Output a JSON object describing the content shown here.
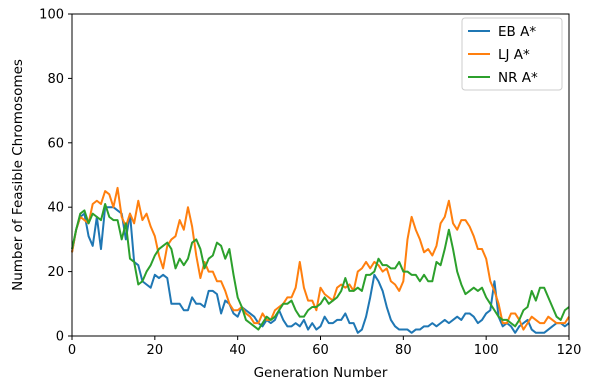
{
  "chart_data": {
    "type": "line",
    "title": "",
    "xlabel": "Generation Number",
    "ylabel": "Number of Feasible Chromosomes",
    "xlim": [
      0,
      120
    ],
    "ylim": [
      0,
      100
    ],
    "x_ticks": [
      "0",
      "20",
      "40",
      "60",
      "80",
      "100",
      "120"
    ],
    "y_ticks": [
      "0",
      "20",
      "40",
      "60",
      "80",
      "100"
    ],
    "grid": false,
    "legend_position": "top-right",
    "series": [
      {
        "name": "EB A*",
        "color": "#1f77b4",
        "x": [
          0,
          1,
          2,
          3,
          4,
          5,
          6,
          7,
          8,
          9,
          10,
          11,
          12,
          13,
          14,
          15,
          16,
          17,
          18,
          19,
          20,
          21,
          22,
          23,
          24,
          25,
          26,
          27,
          28,
          29,
          30,
          31,
          32,
          33,
          34,
          35,
          36,
          37,
          38,
          39,
          40,
          41,
          42,
          43,
          44,
          45,
          46,
          47,
          48,
          49,
          50,
          51,
          52,
          53,
          54,
          55,
          56,
          57,
          58,
          59,
          60,
          61,
          62,
          63,
          64,
          65,
          66,
          67,
          68,
          69,
          70,
          71,
          72,
          73,
          74,
          75,
          76,
          77,
          78,
          79,
          80,
          81,
          82,
          83,
          84,
          85,
          86,
          87,
          88,
          89,
          90,
          91,
          92,
          93,
          94,
          95,
          96,
          97,
          98,
          99,
          100,
          101,
          102,
          103,
          104,
          105,
          106,
          107,
          108,
          109,
          110,
          111,
          112,
          113,
          114,
          115,
          116,
          117,
          118,
          119,
          120
        ],
        "values": [
          26,
          33,
          37,
          38,
          31,
          28,
          37,
          27,
          40,
          40,
          40,
          39,
          38,
          30,
          38,
          23,
          22,
          17,
          16,
          15,
          19,
          18,
          19,
          18,
          10,
          10,
          10,
          8,
          8,
          12,
          10,
          10,
          9,
          14,
          14,
          13,
          7,
          11,
          10,
          7,
          6,
          9,
          8,
          7,
          6,
          4,
          3,
          5,
          4,
          5,
          8,
          5,
          3,
          3,
          4,
          3,
          5,
          2,
          4,
          2,
          3,
          6,
          4,
          4,
          5,
          5,
          7,
          4,
          4,
          1,
          2,
          6,
          12,
          19,
          17,
          14,
          9,
          5,
          3,
          2,
          2,
          2,
          1,
          2,
          2,
          3,
          3,
          4,
          3,
          4,
          5,
          4,
          5,
          6,
          5,
          7,
          7,
          6,
          4,
          5,
          7,
          8,
          17,
          6,
          3,
          4,
          3,
          1,
          3,
          4,
          5,
          2,
          1,
          1,
          1,
          2,
          3,
          4,
          4,
          3,
          4
        ]
      },
      {
        "name": "LJ A*",
        "color": "#ff7f0e",
        "x": [
          0,
          1,
          2,
          3,
          4,
          5,
          6,
          7,
          8,
          9,
          10,
          11,
          12,
          13,
          14,
          15,
          16,
          17,
          18,
          19,
          20,
          21,
          22,
          23,
          24,
          25,
          26,
          27,
          28,
          29,
          30,
          31,
          32,
          33,
          34,
          35,
          36,
          37,
          38,
          39,
          40,
          41,
          42,
          43,
          44,
          45,
          46,
          47,
          48,
          49,
          50,
          51,
          52,
          53,
          54,
          55,
          56,
          57,
          58,
          59,
          60,
          61,
          62,
          63,
          64,
          65,
          66,
          67,
          68,
          69,
          70,
          71,
          72,
          73,
          74,
          75,
          76,
          77,
          78,
          79,
          80,
          81,
          82,
          83,
          84,
          85,
          86,
          87,
          88,
          89,
          90,
          91,
          92,
          93,
          94,
          95,
          96,
          97,
          98,
          99,
          100,
          101,
          102,
          103,
          104,
          105,
          106,
          107,
          108,
          109,
          110,
          111,
          112,
          113,
          114,
          115,
          116,
          117,
          118,
          119,
          120
        ],
        "values": [
          26,
          33,
          37,
          36,
          35,
          41,
          42,
          41,
          45,
          44,
          40,
          46,
          37,
          34,
          38,
          35,
          42,
          36,
          38,
          34,
          31,
          25,
          21,
          28,
          30,
          31,
          36,
          33,
          40,
          34,
          25,
          18,
          23,
          20,
          20,
          17,
          17,
          14,
          10,
          8,
          8,
          9,
          7,
          6,
          4,
          4,
          7,
          5,
          5,
          8,
          9,
          10,
          12,
          12,
          15,
          23,
          15,
          11,
          11,
          8,
          15,
          13,
          12,
          11,
          15,
          16,
          15,
          16,
          14,
          20,
          21,
          23,
          21,
          23,
          22,
          20,
          21,
          17,
          16,
          14,
          17,
          30,
          37,
          33,
          30,
          26,
          27,
          25,
          28,
          35,
          37,
          42,
          35,
          33,
          36,
          36,
          34,
          31,
          27,
          27,
          24,
          17,
          14,
          10,
          4,
          4,
          7,
          7,
          5,
          2,
          4,
          6,
          5,
          4,
          4,
          6,
          5,
          4,
          4,
          4,
          6
        ]
      },
      {
        "name": "NR A*",
        "color": "#2ca02c",
        "x": [
          0,
          1,
          2,
          3,
          4,
          5,
          6,
          7,
          8,
          9,
          10,
          11,
          12,
          13,
          14,
          15,
          16,
          17,
          18,
          19,
          20,
          21,
          22,
          23,
          24,
          25,
          26,
          27,
          28,
          29,
          30,
          31,
          32,
          33,
          34,
          35,
          36,
          37,
          38,
          39,
          40,
          41,
          42,
          43,
          44,
          45,
          46,
          47,
          48,
          49,
          50,
          51,
          52,
          53,
          54,
          55,
          56,
          57,
          58,
          59,
          60,
          61,
          62,
          63,
          64,
          65,
          66,
          67,
          68,
          69,
          70,
          71,
          72,
          73,
          74,
          75,
          76,
          77,
          78,
          79,
          80,
          81,
          82,
          83,
          84,
          85,
          86,
          87,
          88,
          89,
          90,
          91,
          92,
          93,
          94,
          95,
          96,
          97,
          98,
          99,
          100,
          101,
          102,
          103,
          104,
          105,
          106,
          107,
          108,
          109,
          110,
          111,
          112,
          113,
          114,
          115,
          116,
          117,
          118,
          119,
          120
        ],
        "values": [
          27,
          33,
          38,
          39,
          35,
          38,
          37,
          36,
          41,
          37,
          36,
          36,
          30,
          35,
          24,
          23,
          16,
          17,
          20,
          22,
          25,
          27,
          28,
          29,
          27,
          21,
          24,
          22,
          24,
          29,
          30,
          27,
          21,
          24,
          25,
          29,
          28,
          24,
          27,
          19,
          12,
          9,
          5,
          4,
          3,
          2,
          4,
          6,
          5,
          6,
          8,
          10,
          10,
          11,
          8,
          6,
          6,
          8,
          9,
          9,
          10,
          12,
          10,
          11,
          12,
          14,
          18,
          14,
          14,
          15,
          14,
          19,
          19,
          20,
          24,
          22,
          22,
          21,
          21,
          23,
          20,
          20,
          19,
          19,
          17,
          19,
          17,
          17,
          23,
          22,
          27,
          33,
          27,
          20,
          16,
          13,
          14,
          15,
          14,
          15,
          12,
          10,
          8,
          6,
          5,
          5,
          4,
          3,
          5,
          8,
          9,
          14,
          11,
          15,
          15,
          12,
          9,
          6,
          5,
          8,
          9
        ]
      }
    ]
  }
}
